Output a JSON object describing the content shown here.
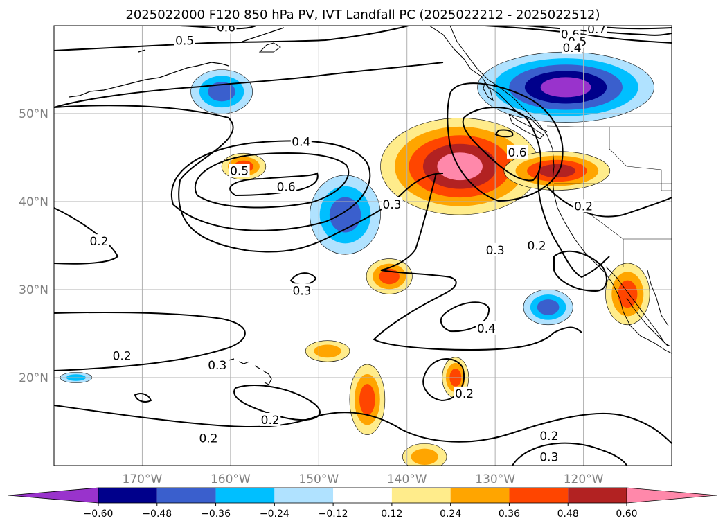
{
  "title": "2025022000 F120 850 hPa PV, IVT Landfall PC (2025022212 - 2025022512)",
  "map": {
    "lon_range": [
      -180,
      -110
    ],
    "lat_range": [
      10,
      60
    ],
    "lon_ticks": [
      {
        "lon": -170,
        "label": "170°W"
      },
      {
        "lon": -160,
        "label": "160°W"
      },
      {
        "lon": -150,
        "label": "150°W"
      },
      {
        "lon": -140,
        "label": "140°W"
      },
      {
        "lon": -130,
        "label": "130°W"
      },
      {
        "lon": -120,
        "label": "120°W"
      }
    ],
    "lat_ticks": [
      {
        "lat": 50,
        "label": "50°N"
      },
      {
        "lat": 40,
        "label": "40°N"
      },
      {
        "lat": 30,
        "label": "30°N"
      },
      {
        "lat": 20,
        "label": "20°N"
      }
    ],
    "grid": true
  },
  "colorbar": {
    "extend": "both",
    "bounds": [
      -0.72,
      -0.6,
      -0.48,
      -0.36,
      -0.24,
      -0.12,
      0.12,
      0.24,
      0.36,
      0.48,
      0.6,
      0.72
    ],
    "colors": [
      "#9933cc",
      "#00008b",
      "#3a5fcd",
      "#00bfff",
      "#b0e2ff",
      "#ffffff",
      "#ffec8b",
      "#ffa500",
      "#ff4500",
      "#b22222",
      "#ff88aa"
    ],
    "tick_labels": [
      "−0.60",
      "−0.48",
      "−0.36",
      "−0.24",
      "−0.12",
      "0.12",
      "0.24",
      "0.36",
      "0.48",
      "0.60"
    ],
    "tick_values": [
      -0.6,
      -0.48,
      -0.36,
      -0.24,
      -0.12,
      0.12,
      0.24,
      0.36,
      0.48,
      0.6
    ]
  },
  "shaded_regions": [
    {
      "name": "pc-pos-ne-pacific-core",
      "levels": [
        0.12,
        0.24,
        0.36,
        0.48,
        0.6
      ],
      "center": [
        -134,
        44
      ],
      "radius_deg": [
        9,
        5.5
      ]
    },
    {
      "name": "pc-pos-oregon-coast",
      "levels": [
        0.12,
        0.24,
        0.36,
        0.48
      ],
      "center": [
        -123,
        43.5
      ],
      "radius_deg": [
        6,
        2.2
      ]
    },
    {
      "name": "pc-neg-bc-alberta",
      "levels": [
        -0.12,
        -0.24,
        -0.36,
        -0.48,
        -0.6
      ],
      "center": [
        -122,
        53
      ],
      "radius_deg": [
        10,
        4
      ]
    },
    {
      "name": "pc-neg-central-pacific",
      "levels": [
        -0.12,
        -0.24,
        -0.36
      ],
      "center": [
        -147,
        38.5
      ],
      "radius_deg": [
        4,
        4.5
      ]
    },
    {
      "name": "pc-neg-gulf-alaska",
      "levels": [
        -0.12,
        -0.24,
        -0.36
      ],
      "center": [
        -161,
        52.5
      ],
      "radius_deg": [
        3.5,
        2.5
      ]
    },
    {
      "name": "pc-pos-west-pacific",
      "levels": [
        0.12,
        0.24,
        0.36
      ],
      "center": [
        -158.5,
        44
      ],
      "radius_deg": [
        2.5,
        1.5
      ]
    },
    {
      "name": "pc-pos-baja",
      "levels": [
        0.12,
        0.24,
        0.36
      ],
      "center": [
        -115,
        29.5
      ],
      "radius_deg": [
        2.5,
        3.5
      ]
    },
    {
      "name": "pc-neg-offshore-baja",
      "levels": [
        -0.12,
        -0.24,
        -0.36
      ],
      "center": [
        -124,
        28
      ],
      "radius_deg": [
        2.8,
        2
      ]
    },
    {
      "name": "pc-pos-subtropical-a",
      "levels": [
        0.12,
        0.24,
        0.36
      ],
      "center": [
        -142,
        31.5
      ],
      "radius_deg": [
        2.6,
        2
      ]
    },
    {
      "name": "pc-pos-subtropical-b",
      "levels": [
        0.12,
        0.24,
        0.36
      ],
      "center": [
        -144.5,
        17.5
      ],
      "radius_deg": [
        2,
        4
      ]
    },
    {
      "name": "pc-pos-subtropical-c",
      "levels": [
        0.12,
        0.24,
        0.36
      ],
      "center": [
        -134.5,
        20
      ],
      "radius_deg": [
        1.5,
        2.3
      ]
    },
    {
      "name": "pc-pos-subtropical-d",
      "levels": [
        0.12,
        0.24
      ],
      "center": [
        -138,
        11
      ],
      "radius_deg": [
        2.5,
        1.5
      ]
    },
    {
      "name": "pc-pos-subtropical-e",
      "levels": [
        0.12,
        0.24
      ],
      "center": [
        -149,
        23
      ],
      "radius_deg": [
        2.5,
        1.2
      ]
    },
    {
      "name": "pc-neg-hawaii-west",
      "levels": [
        -0.12,
        -0.24
      ],
      "center": [
        -177.5,
        20
      ],
      "radius_deg": [
        1.8,
        0.6
      ]
    }
  ],
  "pv_contour_labels": [
    {
      "value": "0.6",
      "lon": -160.5,
      "lat": 59.8
    },
    {
      "value": "0.5",
      "lon": -165.2,
      "lat": 58.3
    },
    {
      "value": "0.6",
      "lon": -121.5,
      "lat": 59.0
    },
    {
      "value": "0.7",
      "lon": -118.5,
      "lat": 59.6
    },
    {
      "value": "0.5",
      "lon": -120.7,
      "lat": 58.2
    },
    {
      "value": "0.4",
      "lon": -121.3,
      "lat": 57.5
    },
    {
      "value": "0.4",
      "lon": -152.0,
      "lat": 46.8
    },
    {
      "value": "0.5",
      "lon": -159.0,
      "lat": 43.5
    },
    {
      "value": "0.6",
      "lon": -153.7,
      "lat": 41.7
    },
    {
      "value": "0.3",
      "lon": -141.7,
      "lat": 39.7
    },
    {
      "value": "0.6",
      "lon": -127.5,
      "lat": 45.6
    },
    {
      "value": "0.2",
      "lon": -120.0,
      "lat": 39.5
    },
    {
      "value": "0.2",
      "lon": -174.9,
      "lat": 35.5
    },
    {
      "value": "0.3",
      "lon": -130.0,
      "lat": 34.5
    },
    {
      "value": "0.2",
      "lon": -125.3,
      "lat": 35.0
    },
    {
      "value": "0.3",
      "lon": -151.9,
      "lat": 29.9
    },
    {
      "value": "0.4",
      "lon": -131.0,
      "lat": 25.6
    },
    {
      "value": "0.2",
      "lon": -172.3,
      "lat": 22.5
    },
    {
      "value": "0.3",
      "lon": -161.5,
      "lat": 21.4
    },
    {
      "value": "0.2",
      "lon": -133.5,
      "lat": 18.2
    },
    {
      "value": "0.2",
      "lon": -155.5,
      "lat": 15.2
    },
    {
      "value": "0.2",
      "lon": -162.5,
      "lat": 13.1
    },
    {
      "value": "0.2",
      "lon": -123.9,
      "lat": 13.4
    },
    {
      "value": "0.3",
      "lon": -123.9,
      "lat": 11.0
    }
  ]
}
